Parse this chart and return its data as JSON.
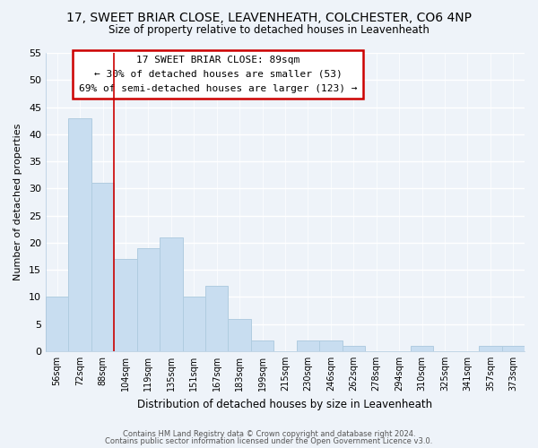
{
  "title_line1": "17, SWEET BRIAR CLOSE, LEAVENHEATH, COLCHESTER, CO6 4NP",
  "title_line2": "Size of property relative to detached houses in Leavenheath",
  "xlabel": "Distribution of detached houses by size in Leavenheath",
  "ylabel": "Number of detached properties",
  "bar_labels": [
    "56sqm",
    "72sqm",
    "88sqm",
    "104sqm",
    "119sqm",
    "135sqm",
    "151sqm",
    "167sqm",
    "183sqm",
    "199sqm",
    "215sqm",
    "230sqm",
    "246sqm",
    "262sqm",
    "278sqm",
    "294sqm",
    "310sqm",
    "325sqm",
    "341sqm",
    "357sqm",
    "373sqm"
  ],
  "bar_values": [
    10,
    43,
    31,
    17,
    19,
    21,
    10,
    12,
    6,
    2,
    0,
    2,
    2,
    1,
    0,
    0,
    1,
    0,
    0,
    1,
    1
  ],
  "bar_color": "#c8ddf0",
  "bar_edge_color": "#b0cce0",
  "vline_x": 2,
  "vline_color": "#cc0000",
  "annotation_text_line1": "17 SWEET BRIAR CLOSE: 89sqm",
  "annotation_text_line2": "← 30% of detached houses are smaller (53)",
  "annotation_text_line3": "69% of semi-detached houses are larger (123) →",
  "box_edge_color": "#cc0000",
  "ylim": [
    0,
    55
  ],
  "yticks": [
    0,
    5,
    10,
    15,
    20,
    25,
    30,
    35,
    40,
    45,
    50,
    55
  ],
  "footer_line1": "Contains HM Land Registry data © Crown copyright and database right 2024.",
  "footer_line2": "Contains public sector information licensed under the Open Government Licence v3.0.",
  "bg_color": "#eef3f9",
  "grid_color": "#d8e4f0"
}
